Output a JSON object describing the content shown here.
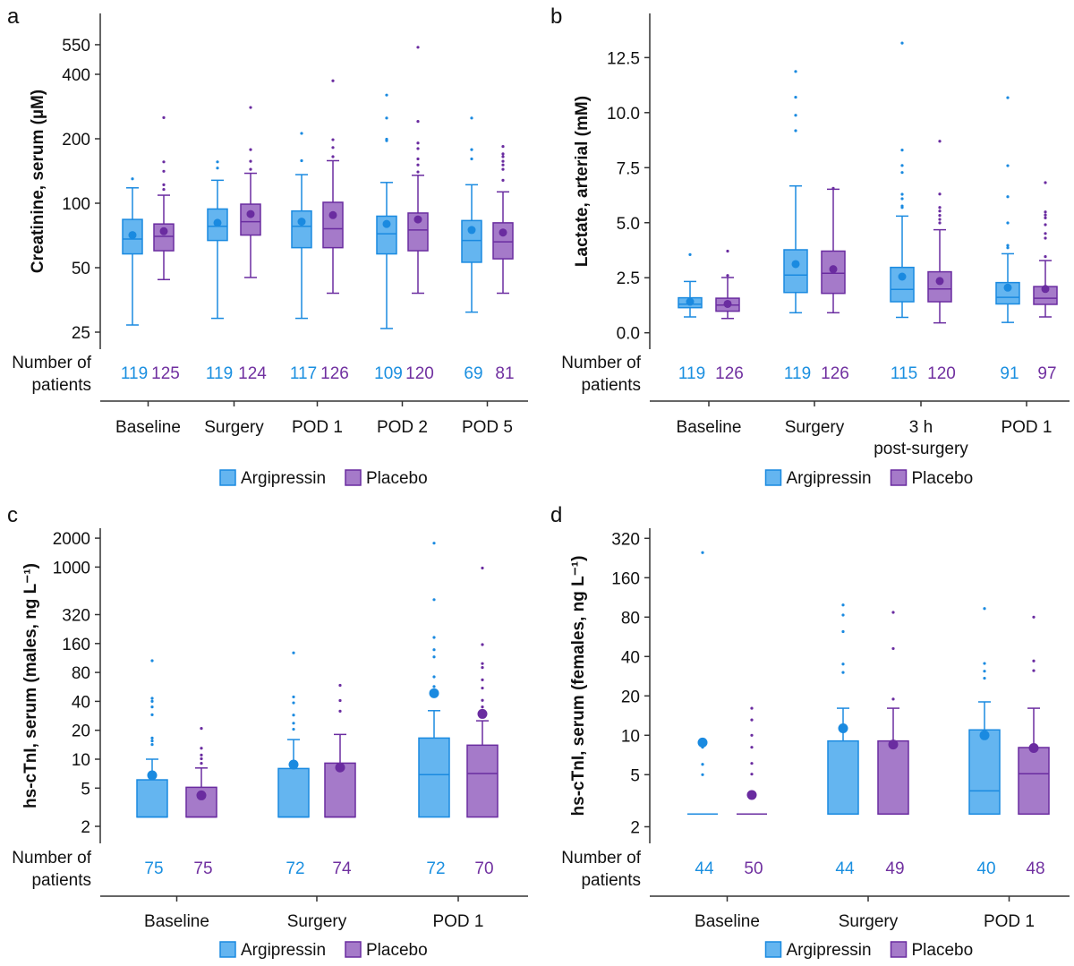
{
  "colors": {
    "argipressin_fill": "#64b5f0",
    "argipressin_stroke": "#1a8ae0",
    "placebo_fill": "#a57ac9",
    "placebo_stroke": "#6a2ca0",
    "argipressin_text": "#1a8fe0",
    "placebo_text": "#7030a0"
  },
  "legend": {
    "argipressin": "Argipressin",
    "placebo": "Placebo"
  },
  "count_label": "Number of\npatients",
  "chart_data": [
    {
      "panel": "a",
      "type": "box",
      "yscale": "log2",
      "ylabel": "Creatinine, serum (µM)",
      "yticks": [
        25,
        50,
        100,
        200,
        400,
        550
      ],
      "categories": [
        "Baseline",
        "Surgery",
        "POD 1",
        "POD 2",
        "POD 5"
      ],
      "series": [
        {
          "name": "Argipressin",
          "counts": [
            119,
            119,
            117,
            109,
            69
          ],
          "boxes": [
            {
              "low": 27,
              "q1": 58,
              "median": 68,
              "q3": 84,
              "high": 118,
              "mean": 71,
              "outliers": [
                130
              ]
            },
            {
              "low": 29,
              "q1": 67,
              "median": 78,
              "q3": 94,
              "high": 128,
              "mean": 81,
              "outliers": [
                146,
                156
              ]
            },
            {
              "low": 29,
              "q1": 62,
              "median": 78,
              "q3": 92,
              "high": 136,
              "mean": 82,
              "outliers": [
                158,
                212
              ]
            },
            {
              "low": 26,
              "q1": 58,
              "median": 72,
              "q3": 87,
              "high": 125,
              "mean": 80,
              "outliers": [
                196,
                199,
                250,
                320
              ]
            },
            {
              "low": 31,
              "q1": 53,
              "median": 67,
              "q3": 83,
              "high": 122,
              "mean": 75,
              "outliers": [
                161,
                178,
                250
              ]
            }
          ]
        },
        {
          "name": "Placebo",
          "counts": [
            125,
            124,
            126,
            120,
            81
          ],
          "boxes": [
            {
              "low": 44,
              "q1": 60,
              "median": 70,
              "q3": 80,
              "high": 109,
              "mean": 74,
              "outliers": [
                116,
                122,
                141,
                156,
                251
              ]
            },
            {
              "low": 45,
              "q1": 71,
              "median": 82,
              "q3": 99,
              "high": 138,
              "mean": 89,
              "outliers": [
                144,
                157,
                178,
                280
              ]
            },
            {
              "low": 38,
              "q1": 62,
              "median": 76,
              "q3": 101,
              "high": 158,
              "mean": 88,
              "outliers": [
                165,
                182,
                198,
                373
              ]
            },
            {
              "low": 38,
              "q1": 60,
              "median": 75,
              "q3": 90,
              "high": 135,
              "mean": 84,
              "outliers": [
                140,
                151,
                161,
                180,
                191,
                241,
                535
              ]
            },
            {
              "low": 38,
              "q1": 55,
              "median": 66,
              "q3": 81,
              "high": 113,
              "mean": 73,
              "outliers": [
                128,
                144,
                151,
                157,
                165,
                170,
                184
              ]
            }
          ]
        }
      ]
    },
    {
      "panel": "b",
      "type": "box",
      "yscale": "linear",
      "ylabel": "Lactate, arterial (mM)",
      "yticks": [
        "0.0",
        "2.5",
        "5.0",
        "7.5",
        "10.0",
        "12.5"
      ],
      "categories": [
        "Baseline",
        "Surgery",
        "3 h\npost-surgery",
        "POD 1"
      ],
      "series": [
        {
          "name": "Argipressin",
          "counts": [
            119,
            119,
            115,
            91
          ],
          "boxes": [
            {
              "low": 0.72,
              "q1": 1.14,
              "median": 1.3,
              "q3": 1.59,
              "high": 2.33,
              "mean": 1.41,
              "outliers": [
                3.55
              ]
            },
            {
              "low": 0.91,
              "q1": 1.83,
              "median": 2.62,
              "q3": 3.77,
              "high": 6.67,
              "mean": 3.12,
              "outliers": [
                9.18,
                9.88,
                10.7,
                11.87
              ]
            },
            {
              "low": 0.7,
              "q1": 1.41,
              "median": 1.97,
              "q3": 2.97,
              "high": 5.3,
              "mean": 2.55,
              "outliers": [
                5.69,
                5.76,
                6.09,
                6.29,
                7.28,
                7.6,
                8.3,
                13.16
              ]
            },
            {
              "low": 0.47,
              "q1": 1.31,
              "median": 1.61,
              "q3": 2.28,
              "high": 3.59,
              "mean": 2.05,
              "outliers": [
                3.86,
                3.97,
                4.99,
                6.18,
                7.59,
                10.68
              ]
            }
          ]
        },
        {
          "name": "Placebo",
          "counts": [
            126,
            126,
            120,
            97
          ],
          "boxes": [
            {
              "low": 0.65,
              "q1": 0.98,
              "median": 1.26,
              "q3": 1.57,
              "high": 2.51,
              "mean": 1.31,
              "outliers": [
                2.6,
                3.71
              ]
            },
            {
              "low": 0.91,
              "q1": 1.79,
              "median": 2.7,
              "q3": 3.71,
              "high": 6.52,
              "mean": 2.89,
              "outliers": [
                6.56
              ]
            },
            {
              "low": 0.45,
              "q1": 1.41,
              "median": 1.99,
              "q3": 2.77,
              "high": 4.68,
              "mean": 2.35,
              "outliers": [
                4.99,
                5.15,
                5.33,
                5.53,
                5.69,
                6.3,
                8.7
              ]
            },
            {
              "low": 0.72,
              "q1": 1.29,
              "median": 1.57,
              "q3": 2.1,
              "high": 3.28,
              "mean": 1.99,
              "outliers": [
                3.46,
                4.3,
                4.51,
                4.91,
                5.22,
                5.35,
                5.49,
                6.82
              ]
            }
          ]
        }
      ]
    },
    {
      "panel": "c",
      "type": "box",
      "yscale": "log2",
      "ylabel": "hs-cTnI, serum (males, ng L⁻¹)",
      "yticks": [
        2,
        5,
        10,
        20,
        40,
        80,
        160,
        320,
        1000,
        2000
      ],
      "categories": [
        "Baseline",
        "Surgery",
        "POD 1"
      ],
      "series": [
        {
          "name": "Argipressin",
          "counts": [
            75,
            72,
            72
          ],
          "boxes": [
            {
              "q1": 2.5,
              "median": 2.5,
              "q3": 6.1,
              "high": 10,
              "mean": 6.8,
              "outliers": [
                14.2,
                15.5,
                16.6,
                29,
                35,
                40,
                43,
                106
              ]
            },
            {
              "q1": 2.5,
              "median": 2.5,
              "q3": 8.0,
              "high": 16,
              "mean": 8.8,
              "outliers": [
                20.5,
                23.7,
                28.8,
                38.6,
                44.5,
                128
              ]
            },
            {
              "q1": 2.5,
              "median": 6.9,
              "q3": 16.6,
              "high": 32,
              "mean": 48.6,
              "outliers": [
                57,
                72,
                116,
                138,
                185,
                458,
                1775
              ]
            }
          ]
        },
        {
          "name": "Placebo",
          "counts": [
            75,
            74,
            70
          ],
          "boxes": [
            {
              "q1": 2.5,
              "median": 2.5,
              "q3": 5.1,
              "high": 8.1,
              "mean": 4.2,
              "outliers": [
                9.05,
                10.1,
                11.05,
                13,
                20.9
              ]
            },
            {
              "q1": 2.5,
              "median": 2.5,
              "q3": 9.1,
              "high": 18.1,
              "mean": 8.2,
              "outliers": [
                31.6,
                40.8,
                58.8
              ]
            },
            {
              "q1": 2.5,
              "median": 7.1,
              "q3": 14.0,
              "high": 25.1,
              "mean": 29.6,
              "outliers": [
                35,
                41,
                55,
                67,
                90,
                99,
                156,
                976
              ]
            }
          ]
        }
      ]
    },
    {
      "panel": "d",
      "type": "box",
      "yscale": "log2",
      "ylabel": "hs-cTnI, serum (females, ng L⁻¹)",
      "yticks": [
        2,
        5,
        10,
        20,
        40,
        80,
        160,
        320
      ],
      "categories": [
        "Baseline",
        "Surgery",
        "POD 1"
      ],
      "series": [
        {
          "name": "Argipressin",
          "counts": [
            44,
            44,
            40
          ],
          "boxes": [
            {
              "q1": 2.5,
              "median": 2.5,
              "q3": 2.5,
              "high": 2.5,
              "mean": 8.8,
              "outliers": [
                5.0,
                6.0,
                8.1,
                249
              ]
            },
            {
              "q1": 2.5,
              "median": 2.5,
              "q3": 9.05,
              "high": 16.1,
              "mean": 11.3,
              "outliers": [
                30.2,
                35,
                62,
                83,
                99
              ]
            },
            {
              "q1": 2.5,
              "median": 3.76,
              "q3": 11.0,
              "high": 18.0,
              "mean": 10,
              "outliers": [
                27.3,
                30.9,
                35.4,
                93
              ]
            }
          ]
        },
        {
          "name": "Placebo",
          "counts": [
            50,
            49,
            48
          ],
          "boxes": [
            {
              "q1": 2.5,
              "median": 2.5,
              "q3": 2.5,
              "high": 2.5,
              "mean": 3.5,
              "outliers": [
                5.05,
                6.1,
                8.1,
                10,
                13.1,
                16.1
              ]
            },
            {
              "q1": 2.5,
              "median": 2.5,
              "q3": 9.05,
              "high": 16.1,
              "mean": 8.5,
              "outliers": [
                18.9,
                46,
                87
              ]
            },
            {
              "q1": 2.5,
              "median": 5.08,
              "q3": 8.06,
              "high": 16.1,
              "mean": 8.0,
              "outliers": [
                31.2,
                37,
                80
              ]
            }
          ]
        }
      ]
    }
  ]
}
